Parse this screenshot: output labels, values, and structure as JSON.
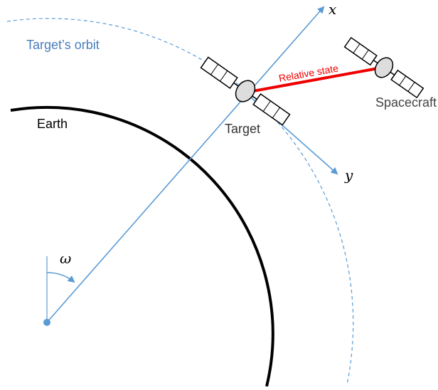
{
  "labels": {
    "orbit": "Target’s orbit",
    "earth": "Earth",
    "target": "Target",
    "spacecraft": "Spacecraft",
    "relative_state": "Relative state",
    "x_axis": "x",
    "y_axis": "y",
    "angle": "ω"
  }
}
